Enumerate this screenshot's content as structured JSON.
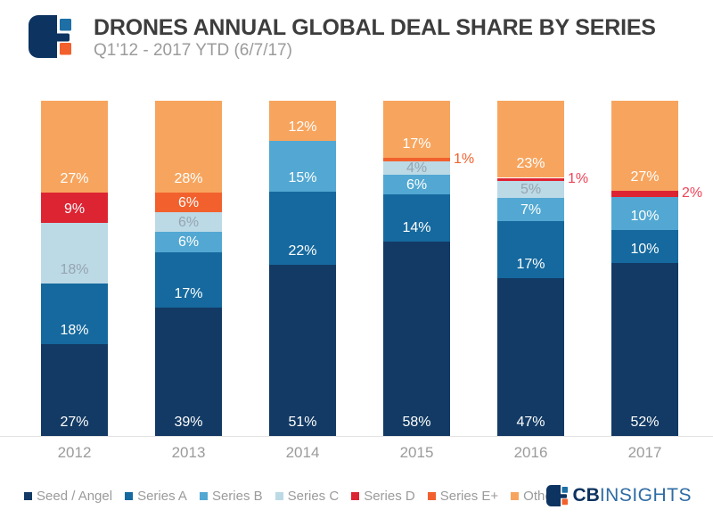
{
  "header": {
    "title": "DRONES ANNUAL GLOBAL DEAL SHARE BY SERIES",
    "subtitle": "Q1'12 - 2017 YTD (6/7/17)"
  },
  "footer": {
    "brand_cb": "CB",
    "brand_insights": "INSIGHTS"
  },
  "colors": {
    "title_text": "#3D3D3D",
    "muted_text": "#9B9B9B",
    "axis_line": "#E4E4E4",
    "brand_navy": "#0D3360",
    "brand_blue": "#2E6CA4",
    "brand_square_blue": "#1D6FA5",
    "brand_square_orange": "#F2612D"
  },
  "chart_data": {
    "type": "bar",
    "stacked": true,
    "title": "DRONES ANNUAL GLOBAL DEAL SHARE BY SERIES",
    "subtitle": "Q1'12 - 2017 YTD (6/7/17)",
    "value_suffix": "%",
    "ylim": [
      0,
      100
    ],
    "grid": false,
    "legend_position": "bottom",
    "categories": [
      "2012",
      "2013",
      "2014",
      "2015",
      "2016",
      "2017"
    ],
    "series": [
      {
        "name": "Seed / Angel",
        "color": "#123A64",
        "label_color": "#FFFFFF",
        "values": [
          27,
          39,
          51,
          58,
          47,
          52
        ]
      },
      {
        "name": "Series A",
        "color": "#15699E",
        "label_color": "#FFFFFF",
        "values": [
          18,
          17,
          22,
          14,
          17,
          10
        ]
      },
      {
        "name": "Series B",
        "color": "#52A8D2",
        "label_color": "#FFFFFF",
        "values": [
          0,
          6,
          15,
          6,
          7,
          10
        ]
      },
      {
        "name": "Series C",
        "color": "#BCD9E6",
        "label_color": "#96A5AF",
        "values": [
          18,
          6,
          0,
          4,
          5,
          0
        ]
      },
      {
        "name": "Series D",
        "color": "#DD2433",
        "label_color": "#FFFFFF",
        "callout_color": "#EE4458",
        "values": [
          9,
          0,
          0,
          0,
          1,
          2
        ]
      },
      {
        "name": "Series E+",
        "color": "#F2612D",
        "label_color": "#FFFFFF",
        "callout_color": "#F2612D",
        "values": [
          0,
          6,
          0,
          1,
          0,
          0
        ]
      },
      {
        "name": "Other",
        "color": "#F7A55E",
        "label_color": "#FFFFFF",
        "values": [
          27,
          28,
          12,
          17,
          23,
          27
        ]
      }
    ],
    "callout_threshold": 4
  }
}
